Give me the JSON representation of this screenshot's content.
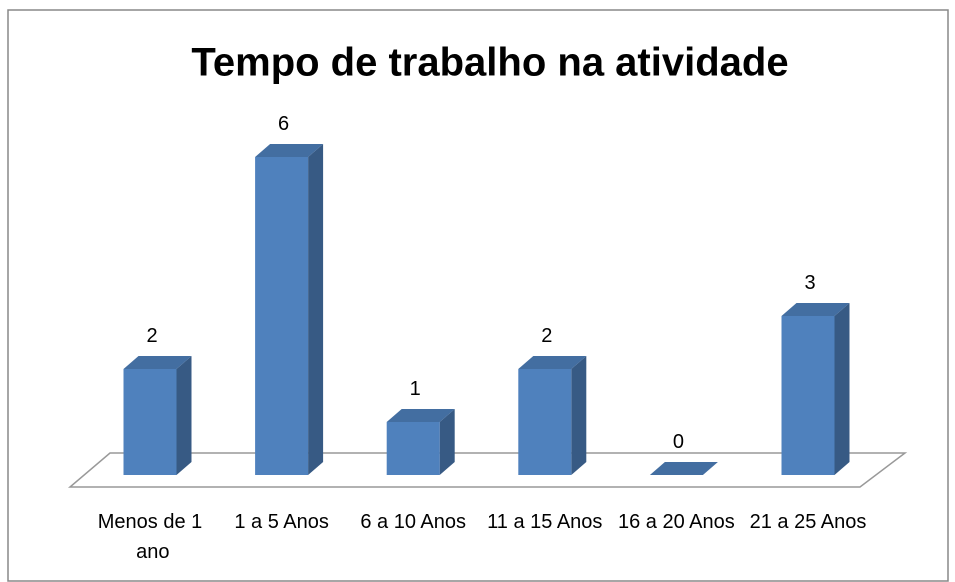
{
  "chart_data": {
    "type": "bar3d",
    "title": "Tempo de trabalho na atividade",
    "categories": [
      "Menos de 1 ano",
      "1 a 5 Anos",
      "6 a 10 Anos",
      "11 a 15 Anos",
      "16 a 20 Anos",
      "21 a 25 Anos"
    ],
    "values": [
      2,
      6,
      1,
      2,
      0,
      3
    ],
    "color": "#4f81bd"
  }
}
